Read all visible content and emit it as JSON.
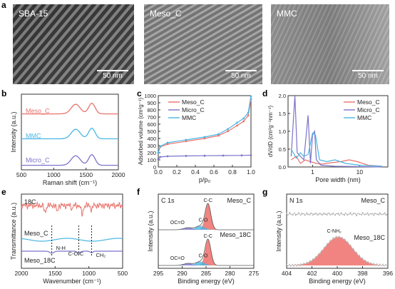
{
  "panel_letters": [
    "a",
    "b",
    "c",
    "d",
    "e",
    "f",
    "g"
  ],
  "tem": [
    {
      "label": "SBA-15",
      "scale": "50 nm"
    },
    {
      "label": "Meso_C",
      "scale": "50 nm"
    },
    {
      "label": "MMC",
      "scale": "50 nm"
    }
  ],
  "colors": {
    "meso": "#e8736c",
    "micro": "#7b73c9",
    "mmc": "#49b7e3",
    "fill": "#ef6f6a",
    "gray": "#b0b0b0",
    "black": "#222222"
  },
  "chart_data": [
    {
      "id": "b",
      "type": "line",
      "xlabel": "Raman shift (cm⁻¹)",
      "ylabel": "Intensity (a.u.)",
      "xlim": [
        500,
        2000
      ],
      "xticks": [
        "500",
        "1000",
        "1500",
        "2000"
      ],
      "series": [
        {
          "name": "Meso_C",
          "x": [
            500,
            1000,
            1200,
            1340,
            1450,
            1590,
            1700,
            2000
          ],
          "y": [
            0.0,
            0.02,
            0.3,
            0.9,
            0.55,
            1.0,
            0.3,
            0.02
          ]
        },
        {
          "name": "MMC",
          "x": [
            500,
            1000,
            1200,
            1340,
            1450,
            1590,
            1700,
            2000
          ],
          "y": [
            0.0,
            0.02,
            0.3,
            0.9,
            0.55,
            1.0,
            0.3,
            0.02
          ]
        },
        {
          "name": "Micro_C",
          "x": [
            500,
            1000,
            1200,
            1340,
            1450,
            1590,
            1700,
            2000
          ],
          "y": [
            0.0,
            0.02,
            0.3,
            0.9,
            0.55,
            1.0,
            0.3,
            0.02
          ]
        }
      ]
    },
    {
      "id": "c",
      "type": "line",
      "xlabel": "p/p₀",
      "ylabel": "Adsorbed volume (cm³g⁻¹)",
      "xlim": [
        0.0,
        1.0
      ],
      "ylim": [
        0,
        1000
      ],
      "xticks": [
        "0.0",
        "0.2",
        "0.4",
        "0.6",
        "0.8",
        "1.0"
      ],
      "yticks": [
        "0",
        "100",
        "200",
        "300",
        "400",
        "500",
        "600",
        "700",
        "800",
        "900",
        "1000"
      ],
      "legend": [
        "Meso_C",
        "Micro_C",
        "MMC"
      ],
      "series": [
        {
          "name": "Meso_C",
          "x": [
            0.0,
            0.02,
            0.1,
            0.3,
            0.5,
            0.65,
            0.75,
            0.85,
            0.92,
            0.97,
            1.0
          ],
          "y": [
            200,
            280,
            320,
            360,
            400,
            440,
            500,
            580,
            640,
            720,
            950
          ]
        },
        {
          "name": "Micro_C",
          "x": [
            0.0,
            0.02,
            0.1,
            0.3,
            0.5,
            0.7,
            0.9,
            1.0
          ],
          "y": [
            110,
            140,
            150,
            155,
            158,
            160,
            162,
            165
          ]
        },
        {
          "name": "MMC",
          "x": [
            0.0,
            0.02,
            0.1,
            0.3,
            0.5,
            0.65,
            0.75,
            0.85,
            0.92,
            0.97,
            1.0
          ],
          "y": [
            200,
            290,
            340,
            380,
            420,
            460,
            530,
            620,
            680,
            760,
            990
          ]
        }
      ]
    },
    {
      "id": "d",
      "type": "line",
      "xlabel": "Pore width (nm)",
      "ylabel": "dV/dD (cm³g⁻¹nm⁻¹)",
      "xscale": "log",
      "xlim": [
        0.3,
        40
      ],
      "ylim": [
        0,
        2.0
      ],
      "xticks": [
        "1",
        "10"
      ],
      "yticks": [
        "0.0",
        "0.5",
        "1.0",
        "1.5",
        "2.0"
      ],
      "legend": [
        "Meso_C",
        "Micro_C",
        "MMC"
      ],
      "series": [
        {
          "name": "Meso_C",
          "x": [
            0.35,
            0.45,
            0.55,
            0.7,
            0.9,
            1.2,
            1.6,
            2.5,
            4,
            6,
            9,
            15,
            30
          ],
          "y": [
            0.2,
            0.3,
            0.1,
            0.2,
            0.15,
            0.1,
            0.08,
            0.12,
            0.15,
            0.2,
            0.15,
            0.05,
            0.02
          ]
        },
        {
          "name": "Micro_C",
          "x": [
            0.35,
            0.42,
            0.47,
            0.55,
            0.65,
            0.8,
            0.9,
            1.0,
            1.1,
            1.2,
            1.5,
            3,
            10,
            30
          ],
          "y": [
            0.3,
            2.0,
            0.4,
            0.3,
            0.2,
            1.45,
            0.1,
            0.9,
            1.0,
            0.2,
            0.05,
            0.02,
            0.01,
            0.0
          ]
        },
        {
          "name": "MMC",
          "x": [
            0.35,
            0.45,
            0.55,
            0.65,
            0.8,
            1.0,
            1.15,
            1.4,
            2,
            3,
            5,
            10,
            30
          ],
          "y": [
            0.5,
            0.25,
            0.4,
            0.3,
            0.35,
            0.95,
            0.9,
            0.2,
            0.15,
            0.2,
            0.1,
            0.05,
            0.02
          ]
        }
      ]
    },
    {
      "id": "e",
      "type": "line",
      "xlabel": "Wavenumber (cm⁻¹)",
      "ylabel": "Transmittance (a.u.)",
      "xlim": [
        2000,
        500
      ],
      "xticks": [
        "2000",
        "1500",
        "1000",
        "500"
      ],
      "annotations": [
        "N-H",
        "C-O-C",
        "CH₂"
      ],
      "series": [
        {
          "name": "18C"
        },
        {
          "name": "Meso_C"
        },
        {
          "name": "Meso_18C"
        }
      ]
    },
    {
      "id": "f",
      "type": "line",
      "title": "C 1s",
      "xlabel": "Binding energy (eV)",
      "ylabel": "Intensity (a.u.)",
      "xlim": [
        295,
        275
      ],
      "xticks": [
        "295",
        "290",
        "285",
        "280",
        "275"
      ],
      "series": [
        {
          "name": "Meso_C",
          "peaks": [
            "C-C",
            "OC=O",
            "C-O"
          ]
        },
        {
          "name": "Meso_18C",
          "peaks": [
            "C-C",
            "OC=O",
            "C-O"
          ]
        }
      ]
    },
    {
      "id": "g",
      "type": "line",
      "title": "N 1s",
      "xlabel": "Binding energy (eV)",
      "ylabel": "Intensity (a.u.)",
      "xlim": [
        405,
        395
      ],
      "xticks": [
        "404",
        "402",
        "400",
        "398",
        "396"
      ],
      "series": [
        {
          "name": "Meso_C"
        },
        {
          "name": "Meso_18C",
          "peaks": [
            "C-NH₂"
          ]
        }
      ]
    }
  ]
}
